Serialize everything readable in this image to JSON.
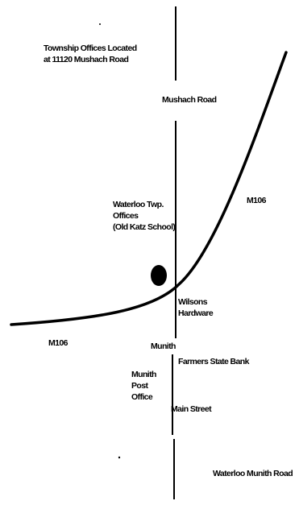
{
  "map": {
    "colors": {
      "ink": "#000000",
      "background": "#ffffff"
    },
    "notes": {
      "township_offices": [
        "Township Offices Located",
        "at 11120 Mushach Road"
      ]
    },
    "roads": {
      "mushach_road": "Mushach Road",
      "m106_north": "M106",
      "m106_west": "M106",
      "main_street": "Main Street",
      "waterloo_munith_road": "Waterloo Munith Road"
    },
    "places": {
      "township_offices_label": [
        "Waterloo Twp.",
        "Offices",
        "(Old Katz School)"
      ],
      "wilsons_hardware": [
        "Wilsons",
        "Hardware"
      ],
      "munith": "Munith",
      "farmers_state_bank": "Farmers State Bank",
      "post_office": [
        "Munith",
        "Post",
        "Office"
      ]
    }
  }
}
